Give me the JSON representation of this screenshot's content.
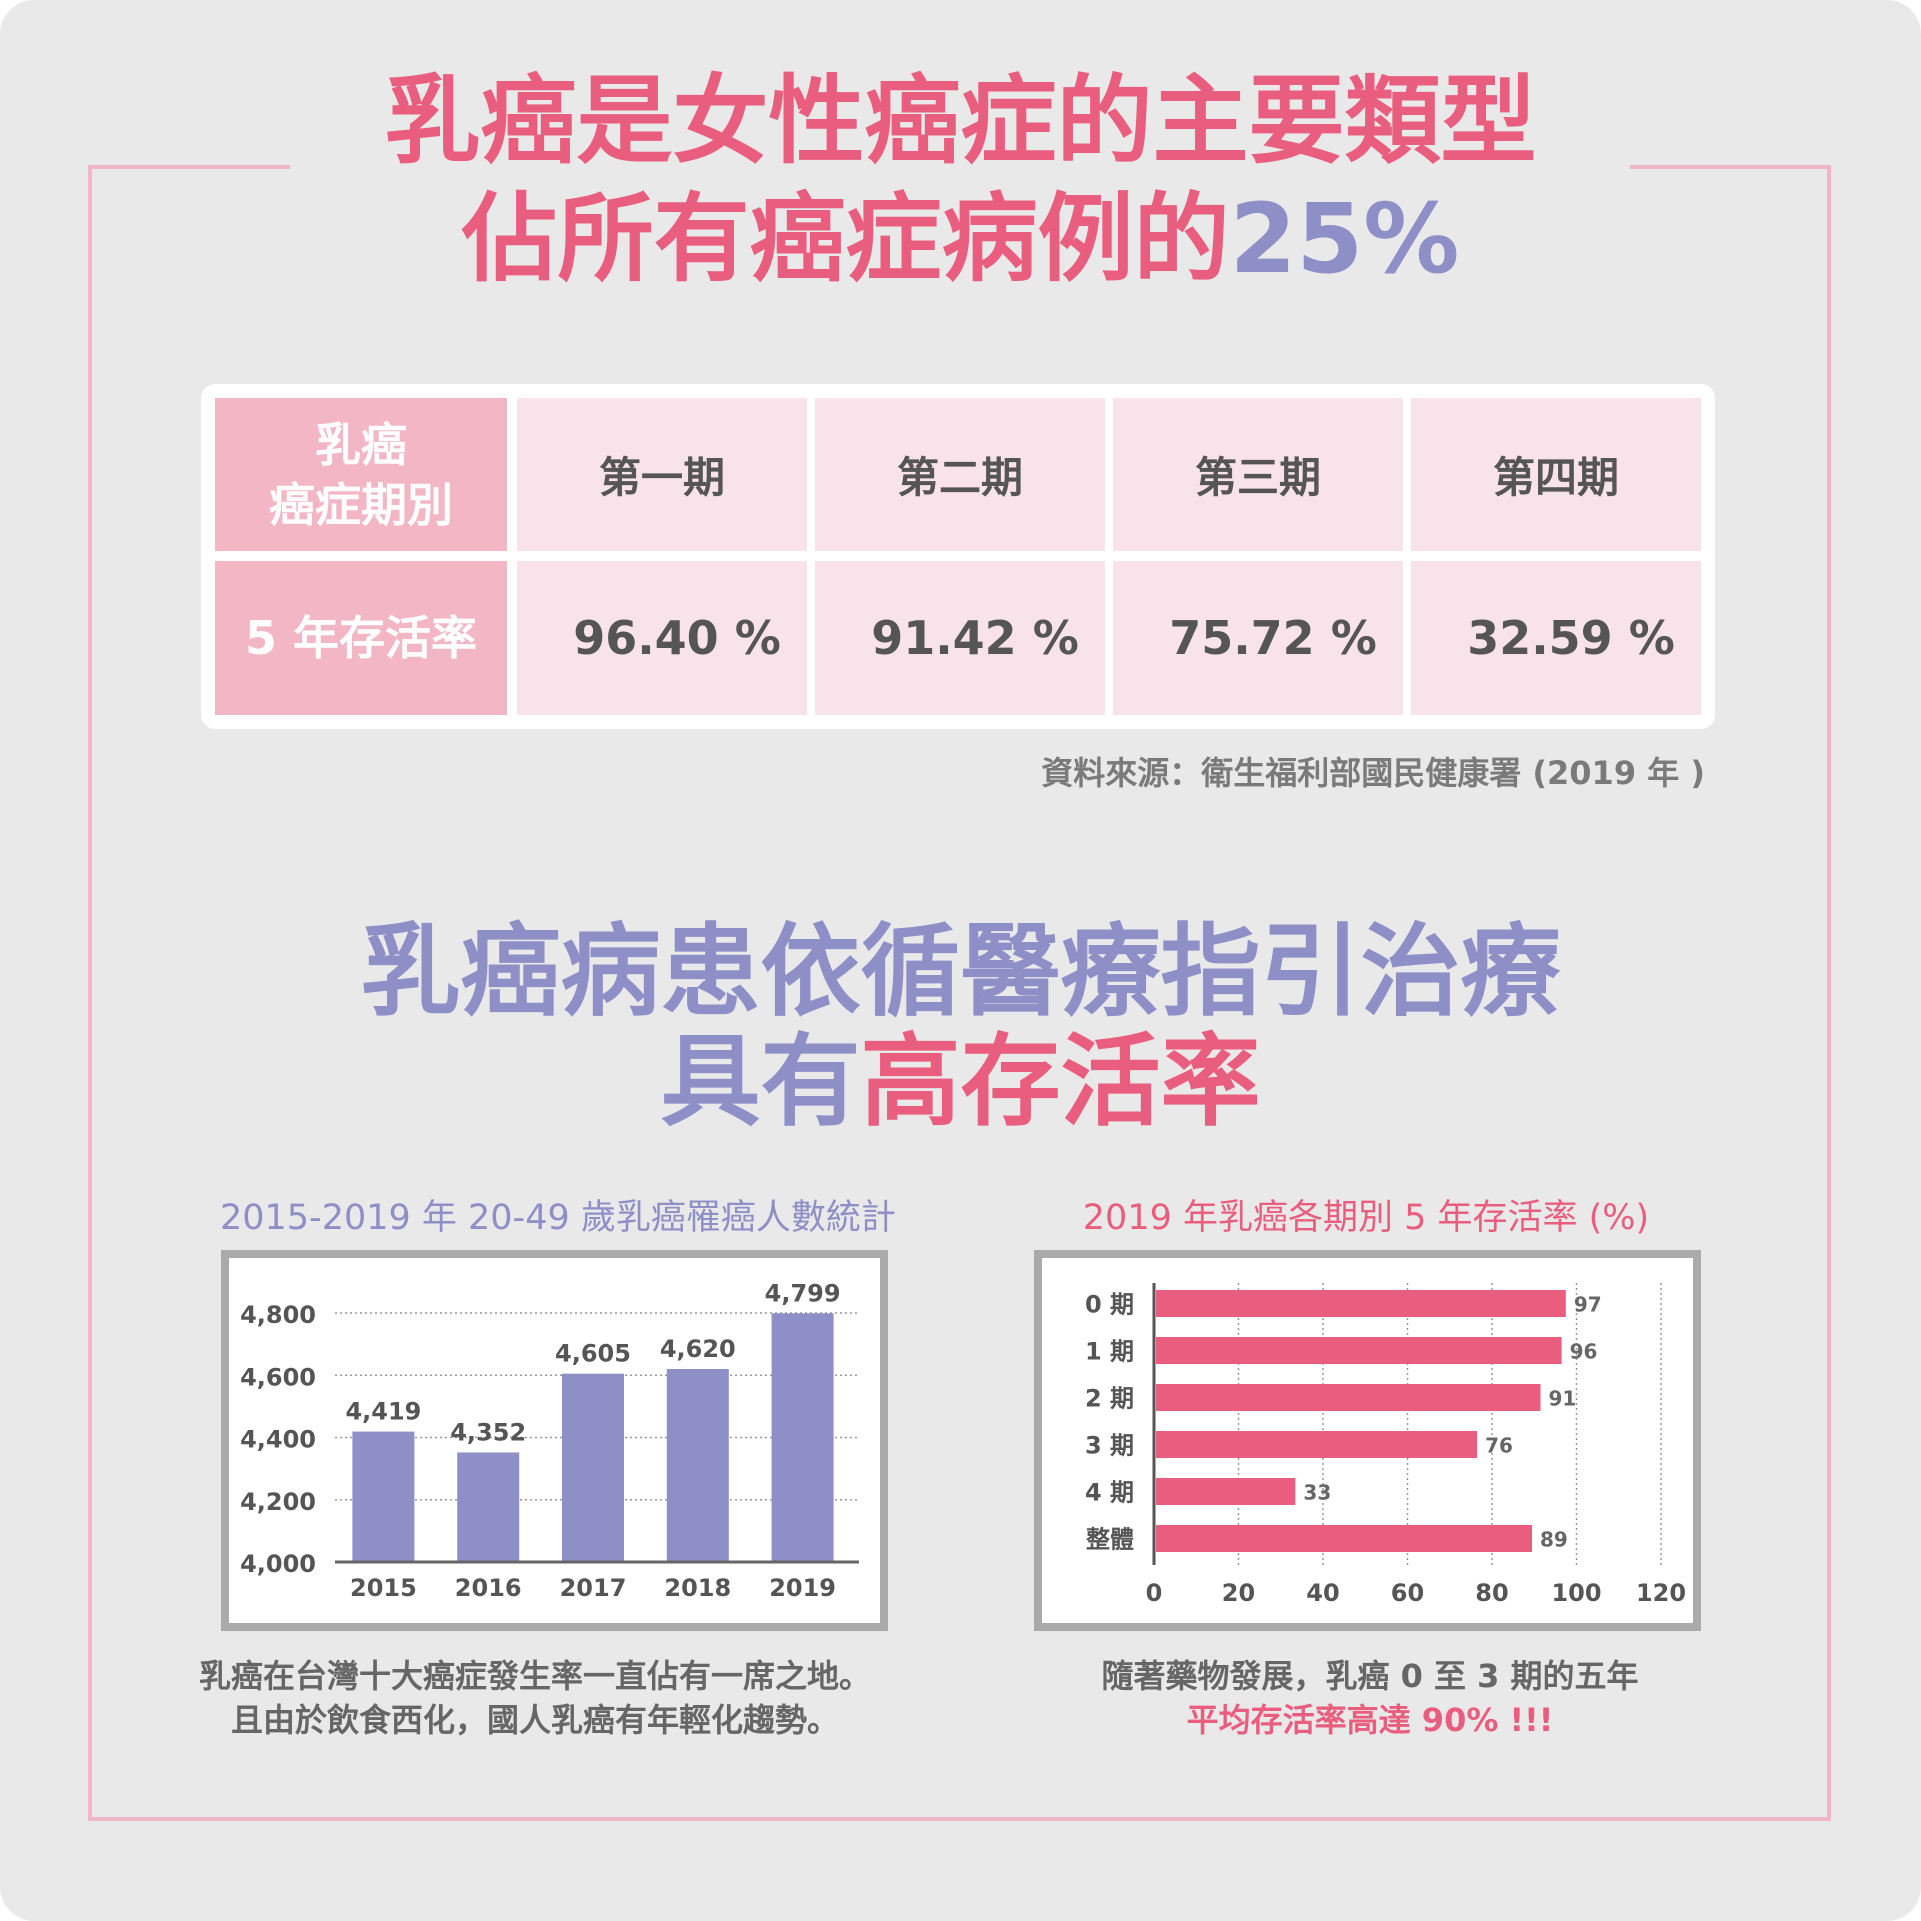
{
  "title": {
    "line1": "乳癌是女性癌症的主要類型",
    "line2_prefix": "佔所有癌症病例的",
    "line2_accent": "25%"
  },
  "table": {
    "header_label": [
      "乳癌",
      "癌症期別"
    ],
    "stages": [
      "第一期",
      "第二期",
      "第三期",
      "第四期"
    ],
    "row_label": "5 年存活率",
    "rates": [
      "96.40 %",
      "91.42 %",
      "75.72 %",
      "32.59 %"
    ]
  },
  "source": "資料來源：衛生福利部國民健康署 (2019 年 )",
  "section2": {
    "line1": "乳癌病患依循醫療指引治療",
    "line2_prefix": "具有",
    "line2_accent": "高存活率"
  },
  "colors": {
    "pink": "#e95e7e",
    "purple": "#8e8fc7",
    "light_pink": "#f3b6c5",
    "table_cell": "#f9e3ea"
  },
  "chart_data": [
    {
      "type": "bar",
      "title": "2015-2019 年 20-49 歲乳癌罹癌人數統計",
      "categories": [
        "2015",
        "2016",
        "2017",
        "2018",
        "2019"
      ],
      "values": [
        4419,
        4352,
        4605,
        4620,
        4799
      ],
      "value_labels": [
        "4,419",
        "4,352",
        "4,605",
        "4,620",
        "4,799"
      ],
      "ylim": [
        4000,
        4800
      ],
      "yticks": [
        4000,
        4200,
        4400,
        4600,
        4800
      ],
      "ytick_labels": [
        "4,000",
        "4,200",
        "4,400",
        "4,600",
        "4,800"
      ],
      "grid": true,
      "color": "#8e8fc7"
    },
    {
      "type": "bar",
      "orientation": "horizontal",
      "title": "2019 年乳癌各期別 5 年存活率 (%)",
      "categories": [
        "0 期",
        "1 期",
        "2 期",
        "3 期",
        "4 期",
        "整體"
      ],
      "values": [
        97,
        96,
        91,
        76,
        33,
        89
      ],
      "xlim": [
        0,
        120
      ],
      "xticks": [
        0,
        20,
        40,
        60,
        80,
        100,
        120
      ],
      "grid": true,
      "color": "#e95e7e"
    }
  ],
  "captions": {
    "left": [
      "乳癌在台灣十大癌症發生率一直佔有一席之地。",
      "且由於飲食西化，國人乳癌有年輕化趨勢。"
    ],
    "right_line1": "隨著藥物發展，乳癌 0 至 3 期的五年",
    "right_line2": "平均存活率高達 90% !!!"
  }
}
